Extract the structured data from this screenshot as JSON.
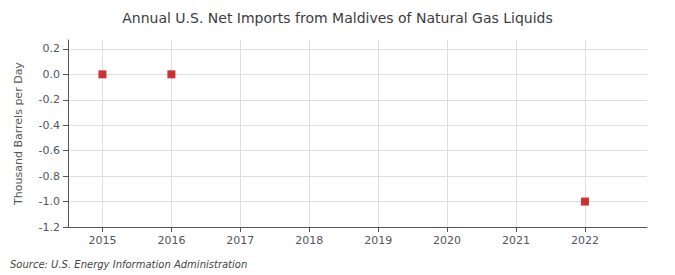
{
  "chart_data": {
    "type": "scatter",
    "title": "Annual U.S. Net Imports from Maldives of Natural Gas Liquids",
    "ylabel": "Thousand Barrels per Day",
    "source": "Source: U.S. Energy Information Administration",
    "x": [
      2015,
      2016,
      2022
    ],
    "values": [
      0.0,
      0.0,
      -1.0
    ],
    "color": "#c00000",
    "marker": "square",
    "xlim": [
      2014.5,
      2022.9
    ],
    "xticks": [
      2015,
      2016,
      2017,
      2018,
      2019,
      2020,
      2021,
      2022
    ],
    "ylim": [
      -1.2,
      0.27
    ],
    "yticks": [
      0.2,
      {
        "value": 0.0,
        "label": "0.0"
      },
      -0.2,
      -0.4,
      -0.6,
      -0.8,
      {
        "value": -1.0,
        "label": "-1.0"
      },
      -1.2
    ],
    "grid": true
  }
}
